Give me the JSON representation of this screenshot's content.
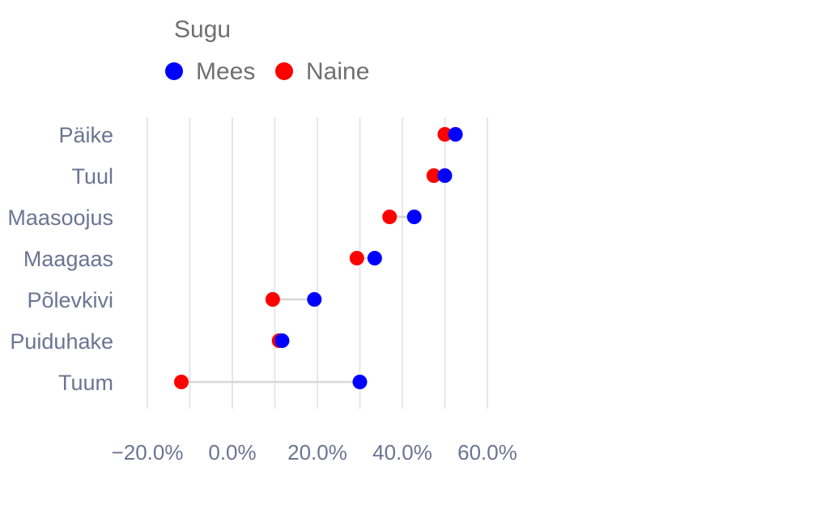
{
  "chart_data": {
    "type": "dumbbell",
    "legend_title": "Sugu",
    "legend_position": "top-left",
    "categories": [
      "Päike",
      "Tuul",
      "Maasoojus",
      "Maagaas",
      "Põlevkivi",
      "Puiduhake",
      "Tuum"
    ],
    "series": [
      {
        "name": "Mees",
        "color": "#0000ff",
        "values": [
          52.5,
          50.0,
          42.8,
          33.5,
          19.3,
          11.7,
          30.0
        ]
      },
      {
        "name": "Naine",
        "color": "#ff0000",
        "values": [
          50.0,
          47.4,
          37.0,
          29.3,
          9.5,
          11.0,
          -12.0
        ]
      }
    ],
    "x_ticks": [
      -20,
      0,
      20,
      40,
      60
    ],
    "x_tick_labels": [
      "−20.0%",
      "0.0%",
      "20.0%",
      "40.0%",
      "60.0%"
    ],
    "xlim": [
      -20,
      60
    ],
    "grid": true,
    "connector_color": "#d7d7d7"
  }
}
